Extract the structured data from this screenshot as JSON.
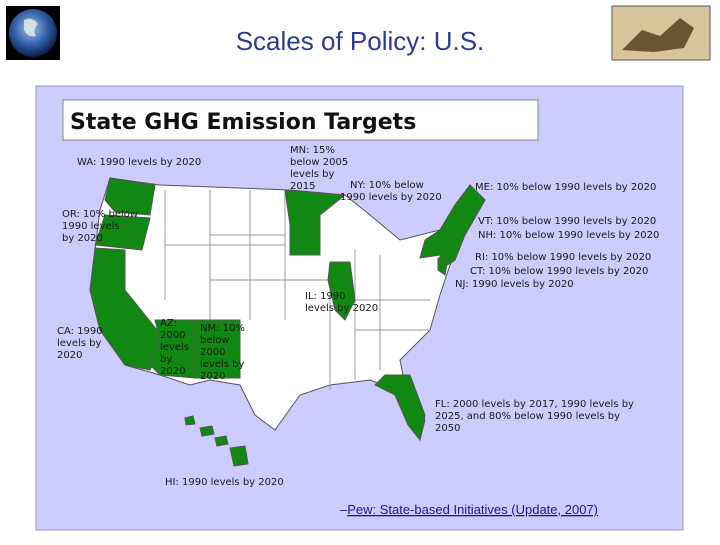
{
  "header": {
    "title": "Scales of Policy: U.S."
  },
  "map": {
    "title": "State GHG Emission Targets",
    "labels": [
      {
        "lines": [
          "WA: 1990 levels by 2020"
        ]
      },
      {
        "lines": [
          "MN: 15%",
          "below 2005",
          "levels by",
          "2015"
        ]
      },
      {
        "lines": [
          "NY: 10% below",
          "1990 levels by 2020"
        ]
      },
      {
        "lines": [
          "ME: 10% below 1990 levels by 2020"
        ]
      },
      {
        "lines": [
          "OR: 10% below",
          "1990 levels",
          "by 2020"
        ]
      },
      {
        "lines": [
          "VT: 10% below 1990 levels by 2020"
        ]
      },
      {
        "lines": [
          "NH: 10% below 1990 levels by 2020"
        ]
      },
      {
        "lines": [
          "RI: 10% below 1990 levels by 2020"
        ]
      },
      {
        "lines": [
          "CT: 10% below 1990 levels by 2020"
        ]
      },
      {
        "lines": [
          "NJ: 1990 levels by 2020"
        ]
      },
      {
        "lines": [
          "IL: 1990",
          "levels by 2020"
        ]
      },
      {
        "lines": [
          "CA: 1990",
          "levels by",
          "2020"
        ]
      },
      {
        "lines": [
          "AZ:",
          "2000",
          "levels",
          "by",
          "2020"
        ]
      },
      {
        "lines": [
          "NM: 10%",
          "below",
          "2000",
          "levels by",
          "2020"
        ]
      },
      {
        "lines": [
          "FL: 2000 levels by 2017, 1990 levels by",
          "2025, and 80% below 1990 levels by",
          "2050"
        ]
      },
      {
        "lines": [
          "HI: 1990 levels by 2020"
        ]
      }
    ]
  },
  "citation": {
    "prefix": "–",
    "link": "Pew: State-based Initiatives (Update, 2007)"
  }
}
